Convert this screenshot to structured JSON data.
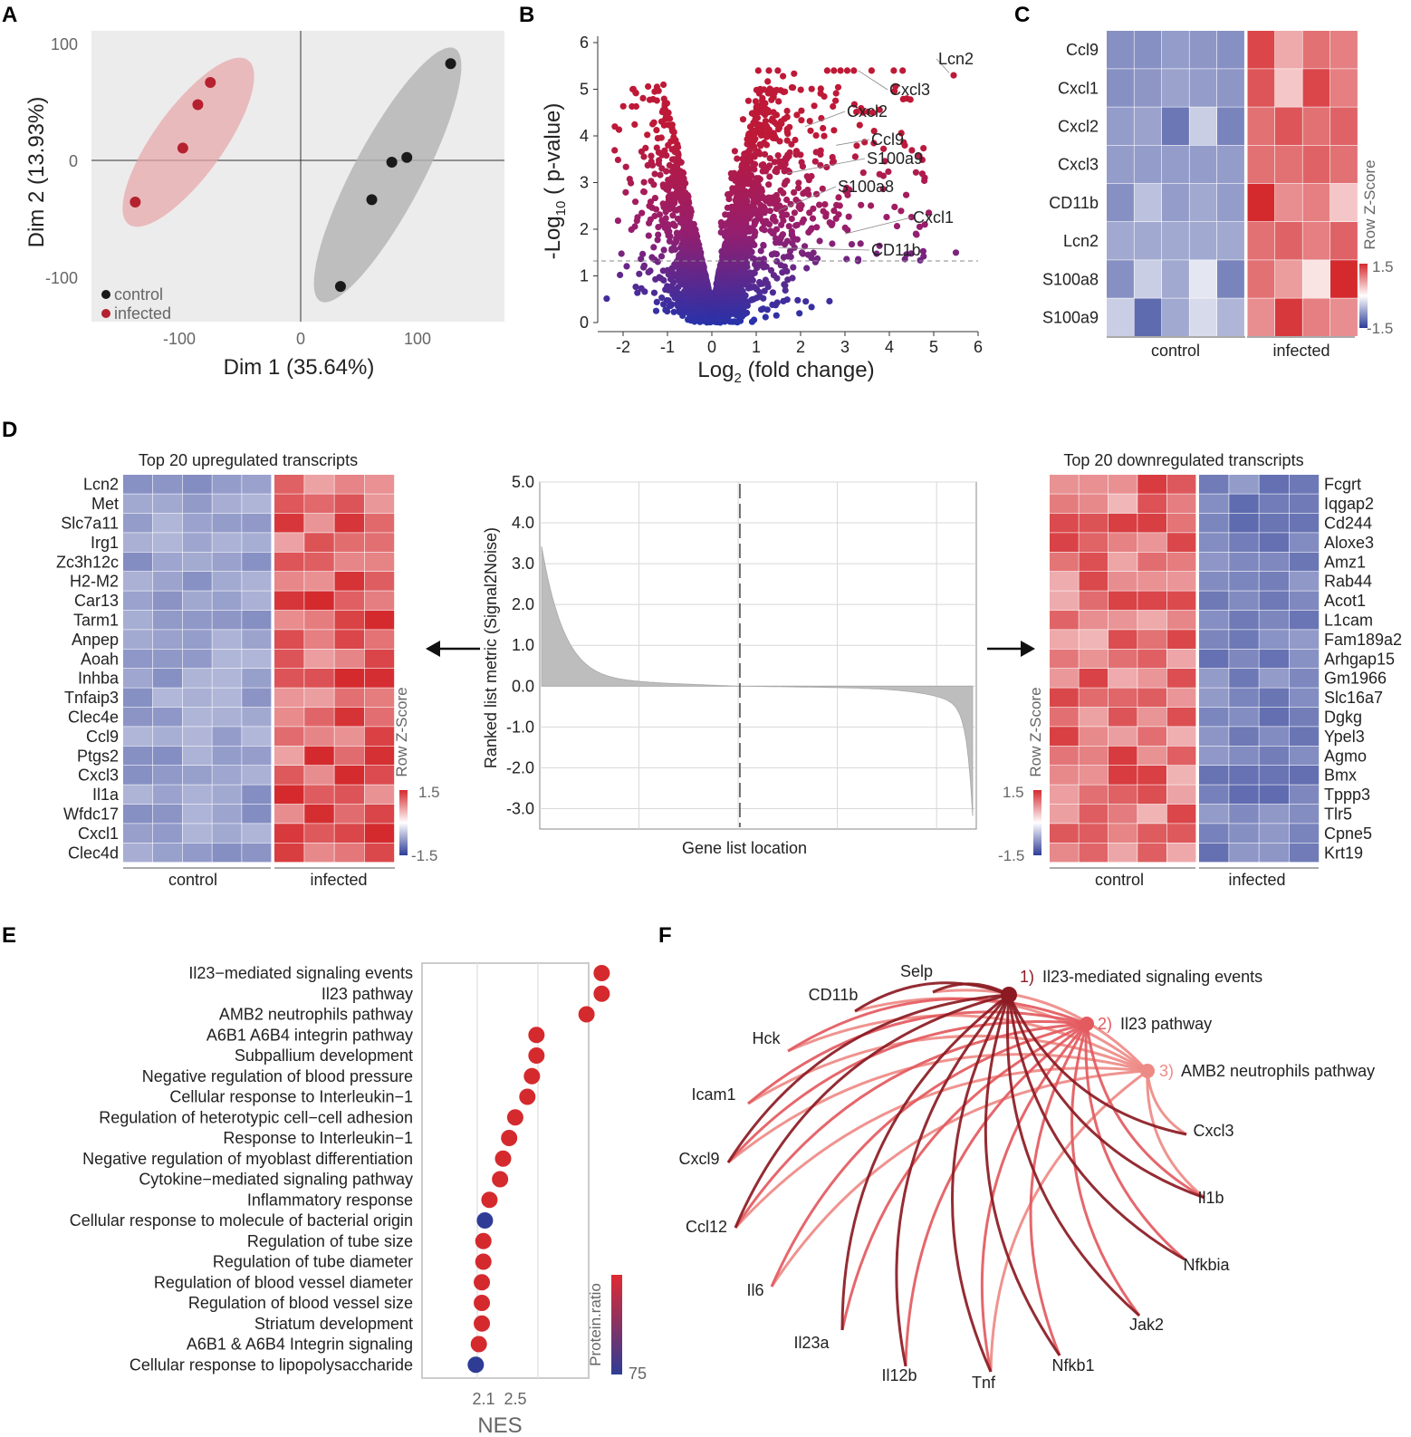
{
  "panel_letters": [
    "A",
    "B",
    "C",
    "D",
    "E",
    "F"
  ],
  "chart_data": [
    {
      "panel": "A",
      "type": "scatter",
      "xlabel": "Dim 1 (35.64%)",
      "ylabel": "Dim 2 (13.93%)",
      "xlim": [
        -165,
        165
      ],
      "ylim": [
        -140,
        108
      ],
      "xticks": [
        "-100",
        "0",
        "100"
      ],
      "yticks": [
        "100",
        "0",
        "-100"
      ],
      "legend": [
        {
          "label": "control",
          "color": "#1a1a1a"
        },
        {
          "label": "infected",
          "color": "#b5212e"
        }
      ],
      "series": [
        {
          "name": "control",
          "points": [
            [
              122,
              80
            ],
            [
              87,
              0
            ],
            [
              75,
              -4
            ],
            [
              59,
              -36
            ],
            [
              34,
              -110
            ]
          ]
        },
        {
          "name": "infected",
          "points": [
            [
              -70,
              64
            ],
            [
              -80,
              45
            ],
            [
              -92,
              8
            ],
            [
              -130,
              -38
            ]
          ]
        }
      ]
    },
    {
      "panel": "B",
      "type": "scatter",
      "xlabel_main": "Log",
      "xlabel_sub": "2",
      "xlabel_rest": " (fold change)",
      "ylabel_main": "-Log",
      "ylabel_sub": "10",
      "ylabel_rest": " ( p-value)",
      "xlim": [
        -2.5,
        6
      ],
      "ylim": [
        0,
        6
      ],
      "xticks": [
        "-2",
        "-1",
        "0",
        "1",
        "2",
        "3",
        "4",
        "5",
        "6"
      ],
      "yticks": [
        "0",
        "1",
        "2",
        "3",
        "4",
        "5",
        "6"
      ],
      "threshold": 1.3,
      "labels": [
        {
          "name": "Lcn2",
          "x": 5.35,
          "y": 5.35
        },
        {
          "name": "Cxcl3",
          "x": 3.3,
          "y": 5.4
        },
        {
          "name": "Cxcl2",
          "x": 2.1,
          "y": 4.2
        },
        {
          "name": "Ccl9",
          "x": 2.8,
          "y": 3.8
        },
        {
          "name": "S100a9",
          "x": 1.7,
          "y": 3.2
        },
        {
          "name": "S100a8",
          "x": 1.5,
          "y": 2.4
        },
        {
          "name": "Cxcl1",
          "x": 3.0,
          "y": 1.9
        },
        {
          "name": "CD11b",
          "x": 1.5,
          "y": 1.6
        }
      ]
    },
    {
      "panel": "C",
      "type": "heatmap",
      "rows": [
        "Ccl9",
        "Cxcl1",
        "Cxcl2",
        "Cxcl3",
        "CD11b",
        "Lcn2",
        "S100a8",
        "S100a9"
      ],
      "groups": [
        "control",
        "infected"
      ],
      "legend_title": "Row Z-Score",
      "legend_max": "1.5",
      "legend_min": "-1.5",
      "values": [
        [
          -0.9,
          -0.9,
          -0.8,
          -0.85,
          -0.9,
          1.3,
          0.6,
          1.0,
          0.9
        ],
        [
          -0.9,
          -0.85,
          -0.75,
          -0.8,
          -0.85,
          1.2,
          0.4,
          1.3,
          0.9
        ],
        [
          -0.8,
          -0.75,
          -1.1,
          -0.4,
          -1.0,
          1.0,
          1.2,
          1.0,
          1.1
        ],
        [
          -0.8,
          -0.8,
          -0.8,
          -0.8,
          -0.8,
          1.0,
          1.0,
          1.1,
          1.0
        ],
        [
          -0.9,
          -0.5,
          -0.8,
          -0.7,
          -0.8,
          1.6,
          0.8,
          0.9,
          0.4
        ],
        [
          -0.7,
          -0.7,
          -0.7,
          -0.7,
          -0.7,
          1.0,
          1.1,
          0.9,
          1.1
        ],
        [
          -0.9,
          -0.4,
          -0.7,
          -0.2,
          -1.0,
          1.0,
          0.7,
          0.2,
          1.6
        ],
        [
          -0.4,
          -1.2,
          -0.7,
          -0.3,
          -0.6,
          0.8,
          1.4,
          0.9,
          0.8
        ]
      ]
    },
    {
      "panel": "D-left",
      "type": "heatmap",
      "title": "Top 20 upregulated transcripts",
      "rows": [
        "Lcn2",
        "Met",
        "Slc7a11",
        "Irg1",
        "Zc3h12c",
        "H2-M2",
        "Car13",
        "Tarm1",
        "Anpep",
        "Aoah",
        "Inhba",
        "Tnfaip3",
        "Clec4e",
        "Ccl9",
        "Ptgs2",
        "Cxcl3",
        "Il1a",
        "Wfdc17",
        "Cxcl1",
        "Clec4d"
      ],
      "groups": [
        "control",
        "infected"
      ],
      "legend_title": "Row Z-Score",
      "legend_max": "1.5",
      "legend_min": "-1.5"
    },
    {
      "panel": "D-middle",
      "type": "area",
      "xlabel": "Gene list location",
      "ylabel": "Ranked list metric (Signal2Noise)",
      "ylim": [
        -3.5,
        5.0
      ],
      "yticks": [
        "5.0",
        "4.0",
        "3.0",
        "2.0",
        "1.0",
        "0.0",
        "-1.0",
        "-2.0",
        "-3.0"
      ],
      "max_value": 3.5,
      "min_value": -3.2,
      "zero_cross_fraction": 0.46
    },
    {
      "panel": "D-right",
      "type": "heatmap",
      "title": "Top 20 downregulated transcripts",
      "rows": [
        "Fcgrt",
        "Iqgap2",
        "Cd244",
        "Aloxe3",
        "Amz1",
        "Rab44",
        "Acot1",
        "L1cam",
        "Fam189a2",
        "Arhgap15",
        "Gm1966",
        "Slc16a7",
        "Dgkg",
        "Ypel3",
        "Agmo",
        "Bmx",
        "Tppp3",
        "Tlr5",
        "Cpne5",
        "Krt19"
      ],
      "groups": [
        "control",
        "infected"
      ],
      "legend_title": "Row Z-Score",
      "legend_max": "1.5",
      "legend_min": "-1.5"
    },
    {
      "panel": "E",
      "type": "scatter",
      "xlabel": "NES",
      "xticks": [
        "2.1",
        "2.5"
      ],
      "legend_title": "Protein.ratio",
      "legend_value": "75",
      "terms": [
        {
          "name": "Il23−mediated signaling events",
          "nes": 2.95,
          "ratio": "high"
        },
        {
          "name": "Il23 pathway",
          "nes": 2.95,
          "ratio": "high"
        },
        {
          "name": "AMB2 neutrophils pathway",
          "nes": 2.85,
          "ratio": "high"
        },
        {
          "name": "A6B1 A6B4 integrin pathway",
          "nes": 2.52,
          "ratio": "high"
        },
        {
          "name": "Subpallium development",
          "nes": 2.52,
          "ratio": "high"
        },
        {
          "name": "Negative regulation of blood pressure",
          "nes": 2.49,
          "ratio": "high"
        },
        {
          "name": "Cellular response to Interleukin−1",
          "nes": 2.46,
          "ratio": "high"
        },
        {
          "name": "Regulation of heterotypic cell−cell adhesion",
          "nes": 2.38,
          "ratio": "high"
        },
        {
          "name": "Response to Interleukin−1",
          "nes": 2.34,
          "ratio": "high"
        },
        {
          "name": "Negative regulation of myoblast differentiation",
          "nes": 2.3,
          "ratio": "high"
        },
        {
          "name": "Cytokine−mediated signaling pathway",
          "nes": 2.28,
          "ratio": "high"
        },
        {
          "name": "Inflammatory response",
          "nes": 2.21,
          "ratio": "high"
        },
        {
          "name": "Cellular response to molecule of bacterial origin",
          "nes": 2.18,
          "ratio": "low"
        },
        {
          "name": "Regulation of tube size",
          "nes": 2.17,
          "ratio": "high"
        },
        {
          "name": "Regulation of tube diameter",
          "nes": 2.17,
          "ratio": "high"
        },
        {
          "name": "Regulation of blood vessel diameter",
          "nes": 2.16,
          "ratio": "high"
        },
        {
          "name": "Regulation of blood vessel size",
          "nes": 2.16,
          "ratio": "high"
        },
        {
          "name": "Striatum development",
          "nes": 2.16,
          "ratio": "high"
        },
        {
          "name": "A6B1 & A6B4 Integrin signaling",
          "nes": 2.14,
          "ratio": "high"
        },
        {
          "name": "Cellular response to lipopolysaccharide",
          "nes": 2.12,
          "ratio": "low"
        }
      ]
    },
    {
      "panel": "F",
      "type": "network",
      "hubs": [
        {
          "num": "1)",
          "label": "Il23-mediated signaling events",
          "color": "#8b1a22"
        },
        {
          "num": "2)",
          "label": "Il23 pathway",
          "color": "#e35a5f"
        },
        {
          "num": "3)",
          "label": "AMB2 neutrophils pathway",
          "color": "#ee8a86"
        }
      ],
      "genes": [
        "Selp",
        "CD11b",
        "Hck",
        "Icam1",
        "Cxcl9",
        "Ccl12",
        "Il6",
        "Il23a",
        "Il12b",
        "Tnf",
        "Nfkb1",
        "Jak2",
        "Nfkbia",
        "Il1b",
        "Cxcl3"
      ]
    }
  ]
}
